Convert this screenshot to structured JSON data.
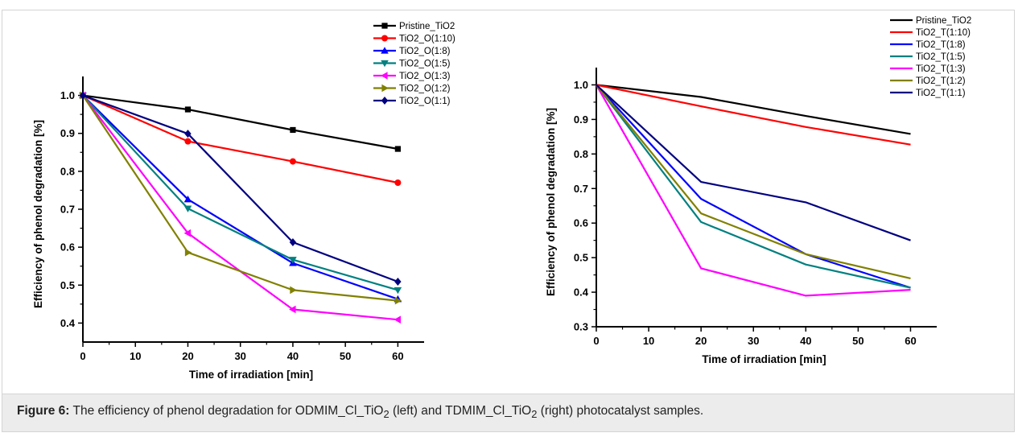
{
  "chart_data": [
    {
      "type": "line",
      "xlabel": "Time of irradiation [min]",
      "ylabel": "Efficiency of phenol degradation [%]",
      "xlim": [
        0,
        65
      ],
      "ylim": [
        0.35,
        1.05
      ],
      "xticks": [
        0,
        10,
        20,
        30,
        40,
        50,
        60
      ],
      "yticks": [
        0.4,
        0.5,
        0.6,
        0.7,
        0.8,
        0.9,
        1.0
      ],
      "ytick_labels": [
        "0.4",
        "0.5",
        "0.6",
        "0.7",
        "0.8",
        "0.9",
        "1.0"
      ],
      "legend_position": "top-right",
      "grid": false,
      "x": [
        0,
        20,
        40,
        60
      ],
      "series": [
        {
          "name": "Pristine_TiO2",
          "color": "#000000",
          "marker": "square",
          "values": [
            1.0,
            0.963,
            0.909,
            0.859
          ]
        },
        {
          "name": "TiO2_O(1:10)",
          "color": "#ff0000",
          "marker": "circle",
          "values": [
            1.0,
            0.879,
            0.826,
            0.77
          ]
        },
        {
          "name": "TiO2_O(1:8)",
          "color": "#0000ff",
          "marker": "triangle-up",
          "values": [
            1.0,
            0.726,
            0.558,
            0.463
          ]
        },
        {
          "name": "TiO2_O(1:5)",
          "color": "#008080",
          "marker": "triangle-down",
          "values": [
            1.0,
            0.702,
            0.567,
            0.487
          ]
        },
        {
          "name": "TiO2_O(1:3)",
          "color": "#ff00ff",
          "marker": "triangle-left",
          "values": [
            1.0,
            0.637,
            0.436,
            0.409
          ]
        },
        {
          "name": "TiO2_O(1:2)",
          "color": "#808000",
          "marker": "triangle-right",
          "values": [
            1.0,
            0.586,
            0.487,
            0.459
          ]
        },
        {
          "name": "TiO2_O(1:1)",
          "color": "#000080",
          "marker": "diamond",
          "values": [
            1.0,
            0.899,
            0.613,
            0.509
          ]
        }
      ]
    },
    {
      "type": "line",
      "xlabel": "Time of irradiation [min]",
      "ylabel": "Efficiency of phenol degradation [%]",
      "xlim": [
        0,
        65
      ],
      "ylim": [
        0.3,
        1.05
      ],
      "xticks": [
        0,
        10,
        20,
        30,
        40,
        50,
        60
      ],
      "yticks": [
        0.3,
        0.4,
        0.5,
        0.6,
        0.7,
        0.8,
        0.9,
        1.0
      ],
      "ytick_labels": [
        "0.3",
        "0.4",
        "0.5",
        "0.6",
        "0.7",
        "0.8",
        "0.9",
        "1.0"
      ],
      "legend_position": "top-right",
      "grid": false,
      "x": [
        0,
        20,
        40,
        60
      ],
      "series": [
        {
          "name": "Pristine_TiO2",
          "color": "#000000",
          "marker": "none",
          "values": [
            1.0,
            0.965,
            0.91,
            0.858
          ]
        },
        {
          "name": "TiO2_T(1:10)",
          "color": "#ff0000",
          "marker": "none",
          "values": [
            1.0,
            0.938,
            0.878,
            0.827
          ]
        },
        {
          "name": "TiO2_T(1:8)",
          "color": "#0000ff",
          "marker": "none",
          "values": [
            1.0,
            0.67,
            0.51,
            0.413
          ]
        },
        {
          "name": "TiO2_T(1:5)",
          "color": "#008080",
          "marker": "none",
          "values": [
            1.0,
            0.603,
            0.48,
            0.413
          ]
        },
        {
          "name": "TiO2_T(1:3)",
          "color": "#ff00ff",
          "marker": "none",
          "values": [
            1.0,
            0.469,
            0.39,
            0.407
          ]
        },
        {
          "name": "TiO2_T(1:2)",
          "color": "#808000",
          "marker": "none",
          "values": [
            1.0,
            0.628,
            0.51,
            0.44
          ]
        },
        {
          "name": "TiO2_T(1:1)",
          "color": "#000080",
          "marker": "none",
          "values": [
            1.0,
            0.719,
            0.66,
            0.55
          ]
        }
      ]
    }
  ],
  "caption": {
    "label": "Figure 6:",
    "text_1": " The efficiency of phenol degradation for ODMIM_Cl_TiO",
    "sub_1": "2",
    "text_2": " (left) and TDMIM_Cl_TiO",
    "sub_2": "2",
    "text_3": " (right) photocatalyst samples."
  }
}
